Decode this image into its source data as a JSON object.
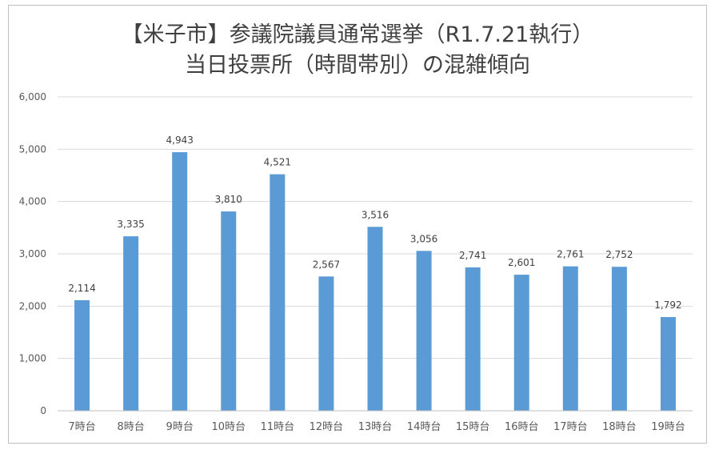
{
  "chart_data": {
    "type": "bar",
    "title_line1": "【米子市】参議院議員通常選挙（R1.7.21執行）",
    "title_line2": "当日投票所（時間帯別）の混雑傾向",
    "categories": [
      "7時台",
      "8時台",
      "9時台",
      "10時台",
      "11時台",
      "12時台",
      "13時台",
      "14時台",
      "15時台",
      "16時台",
      "17時台",
      "18時台",
      "19時台"
    ],
    "values": [
      2114,
      3335,
      4943,
      3810,
      4521,
      2567,
      3516,
      3056,
      2741,
      2601,
      2761,
      2752,
      1792
    ],
    "data_labels": [
      "2,114",
      "3,335",
      "4,943",
      "3,810",
      "4,521",
      "2,567",
      "3,516",
      "3,056",
      "2,741",
      "2,601",
      "2,761",
      "2,752",
      "1,792"
    ],
    "yticks": [
      0,
      1000,
      2000,
      3000,
      4000,
      5000,
      6000
    ],
    "ytick_labels": [
      "0",
      "1,000",
      "2,000",
      "3,000",
      "4,000",
      "5,000",
      "6,000"
    ],
    "ylim": [
      0,
      6000
    ],
    "xlabel": "",
    "ylabel": "",
    "grid": true,
    "legend": "none",
    "bar_color": "#5b9bd5",
    "grid_color": "#d9d9d9"
  }
}
